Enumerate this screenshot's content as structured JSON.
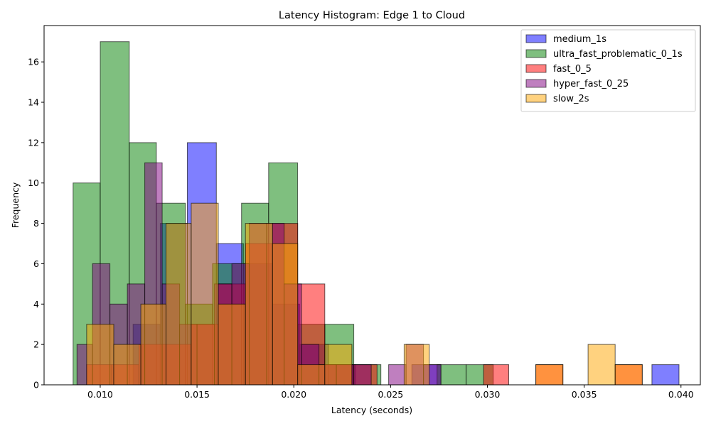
{
  "chart_data": {
    "type": "bar",
    "title": "Latency Histogram: Edge 1 to Cloud",
    "xlabel": "Latency (seconds)",
    "ylabel": "Frequency",
    "xlim": [
      0.0071,
      0.0986
    ],
    "ylim": [
      0,
      17.8
    ],
    "x_ticks": [
      {
        "value": 0.01,
        "label": "0.010"
      },
      {
        "value": 0.015,
        "label": "0.015"
      },
      {
        "value": 0.02,
        "label": "0.020"
      },
      {
        "value": 0.025,
        "label": "0.025"
      },
      {
        "value": 0.03,
        "label": "0.030"
      },
      {
        "value": 0.035,
        "label": "0.035"
      },
      {
        "value": 0.04,
        "label": "0.040"
      }
    ],
    "y_ticks": [
      {
        "value": 0,
        "label": "0"
      },
      {
        "value": 2,
        "label": "2"
      },
      {
        "value": 4,
        "label": "4"
      },
      {
        "value": 6,
        "label": "6"
      },
      {
        "value": 8,
        "label": "8"
      },
      {
        "value": 10,
        "label": "10"
      },
      {
        "value": 12,
        "label": "12"
      },
      {
        "value": 14,
        "label": "14"
      },
      {
        "value": 16,
        "label": "16"
      }
    ],
    "legend_position": "top-right",
    "grid": false,
    "series": [
      {
        "name": "medium_1s",
        "color": "#0000ff",
        "bins": [
          {
            "x0": 0.0117,
            "x1": 0.0131,
            "count": 3
          },
          {
            "x0": 0.0131,
            "x1": 0.0145,
            "count": 8
          },
          {
            "x0": 0.0145,
            "x1": 0.016,
            "count": 12
          },
          {
            "x0": 0.016,
            "x1": 0.0174,
            "count": 7
          },
          {
            "x0": 0.0174,
            "x1": 0.0189,
            "count": 6
          },
          {
            "x0": 0.0189,
            "x1": 0.0203,
            "count": 4
          },
          {
            "x0": 0.0203,
            "x1": 0.0218,
            "count": 2
          },
          {
            "x0": 0.0218,
            "x1": 0.0232,
            "count": 1
          },
          {
            "x0": 0.0261,
            "x1": 0.0276,
            "count": 1
          },
          {
            "x0": 0.0385,
            "x1": 0.0399,
            "count": 1
          }
        ]
      },
      {
        "name": "ultra_fast_problematic_0_1s",
        "color": "#008000",
        "bins": [
          {
            "x0": 0.0086,
            "x1": 0.01,
            "count": 10
          },
          {
            "x0": 0.01,
            "x1": 0.0115,
            "count": 17
          },
          {
            "x0": 0.0115,
            "x1": 0.0129,
            "count": 12
          },
          {
            "x0": 0.0129,
            "x1": 0.0144,
            "count": 9
          },
          {
            "x0": 0.0144,
            "x1": 0.0158,
            "count": 4
          },
          {
            "x0": 0.0158,
            "x1": 0.0173,
            "count": 6
          },
          {
            "x0": 0.0173,
            "x1": 0.0187,
            "count": 9
          },
          {
            "x0": 0.0187,
            "x1": 0.0202,
            "count": 11
          },
          {
            "x0": 0.0202,
            "x1": 0.0216,
            "count": 3
          },
          {
            "x0": 0.0216,
            "x1": 0.0231,
            "count": 3
          },
          {
            "x0": 0.0231,
            "x1": 0.0245,
            "count": 1
          },
          {
            "x0": 0.0274,
            "x1": 0.0289,
            "count": 1
          },
          {
            "x0": 0.0289,
            "x1": 0.0303,
            "count": 1
          }
        ]
      },
      {
        "name": "fast_0_5",
        "color": "#ff0000",
        "bins": [
          {
            "x0": 0.0093,
            "x1": 0.0106,
            "count": 1
          },
          {
            "x0": 0.0106,
            "x1": 0.012,
            "count": 1
          },
          {
            "x0": 0.012,
            "x1": 0.0134,
            "count": 2
          },
          {
            "x0": 0.0134,
            "x1": 0.0147,
            "count": 2
          },
          {
            "x0": 0.0147,
            "x1": 0.0161,
            "count": 3
          },
          {
            "x0": 0.0161,
            "x1": 0.0175,
            "count": 5
          },
          {
            "x0": 0.0175,
            "x1": 0.0189,
            "count": 7
          },
          {
            "x0": 0.0189,
            "x1": 0.0202,
            "count": 8
          },
          {
            "x0": 0.0202,
            "x1": 0.0216,
            "count": 5
          },
          {
            "x0": 0.0216,
            "x1": 0.023,
            "count": 1
          },
          {
            "x0": 0.023,
            "x1": 0.0243,
            "count": 1
          },
          {
            "x0": 0.0298,
            "x1": 0.0311,
            "count": 1
          },
          {
            "x0": 0.0325,
            "x1": 0.0339,
            "count": 1
          },
          {
            "x0": 0.0366,
            "x1": 0.038,
            "count": 1
          }
        ]
      },
      {
        "name": "hyper_fast_0_25",
        "color": "#800080",
        "bins": [
          {
            "x0": 0.0088,
            "x1": 0.0096,
            "count": 2
          },
          {
            "x0": 0.0096,
            "x1": 0.0105,
            "count": 6
          },
          {
            "x0": 0.0105,
            "x1": 0.0114,
            "count": 4
          },
          {
            "x0": 0.0114,
            "x1": 0.0123,
            "count": 5
          },
          {
            "x0": 0.0123,
            "x1": 0.0132,
            "count": 11
          },
          {
            "x0": 0.0132,
            "x1": 0.0141,
            "count": 5
          },
          {
            "x0": 0.0141,
            "x1": 0.015,
            "count": 3
          },
          {
            "x0": 0.015,
            "x1": 0.0159,
            "count": 3
          },
          {
            "x0": 0.0159,
            "x1": 0.0168,
            "count": 5
          },
          {
            "x0": 0.0168,
            "x1": 0.0177,
            "count": 6
          },
          {
            "x0": 0.0177,
            "x1": 0.0186,
            "count": 8
          },
          {
            "x0": 0.0186,
            "x1": 0.0195,
            "count": 8
          },
          {
            "x0": 0.0195,
            "x1": 0.0204,
            "count": 5
          },
          {
            "x0": 0.0204,
            "x1": 0.0213,
            "count": 2
          },
          {
            "x0": 0.0213,
            "x1": 0.0222,
            "count": 1
          },
          {
            "x0": 0.0222,
            "x1": 0.0231,
            "count": 1
          },
          {
            "x0": 0.0231,
            "x1": 0.024,
            "count": 1
          },
          {
            "x0": 0.0249,
            "x1": 0.0258,
            "count": 1
          },
          {
            "x0": 0.0258,
            "x1": 0.0267,
            "count": 2
          },
          {
            "x0": 0.0267,
            "x1": 0.0276,
            "count": 1
          }
        ]
      },
      {
        "name": "slow_2s",
        "color": "#ffa500",
        "bins": [
          {
            "x0": 0.0093,
            "x1": 0.0107,
            "count": 3
          },
          {
            "x0": 0.0107,
            "x1": 0.0121,
            "count": 2
          },
          {
            "x0": 0.0121,
            "x1": 0.0134,
            "count": 4
          },
          {
            "x0": 0.0134,
            "x1": 0.0147,
            "count": 8
          },
          {
            "x0": 0.0147,
            "x1": 0.0161,
            "count": 9
          },
          {
            "x0": 0.0161,
            "x1": 0.0175,
            "count": 4
          },
          {
            "x0": 0.0175,
            "x1": 0.0189,
            "count": 8
          },
          {
            "x0": 0.0189,
            "x1": 0.0202,
            "count": 7
          },
          {
            "x0": 0.0202,
            "x1": 0.0216,
            "count": 1
          },
          {
            "x0": 0.0216,
            "x1": 0.023,
            "count": 2
          },
          {
            "x0": 0.0257,
            "x1": 0.027,
            "count": 2
          },
          {
            "x0": 0.0325,
            "x1": 0.0339,
            "count": 1
          },
          {
            "x0": 0.0352,
            "x1": 0.0366,
            "count": 2
          },
          {
            "x0": 0.0366,
            "x1": 0.038,
            "count": 1
          }
        ]
      }
    ]
  }
}
